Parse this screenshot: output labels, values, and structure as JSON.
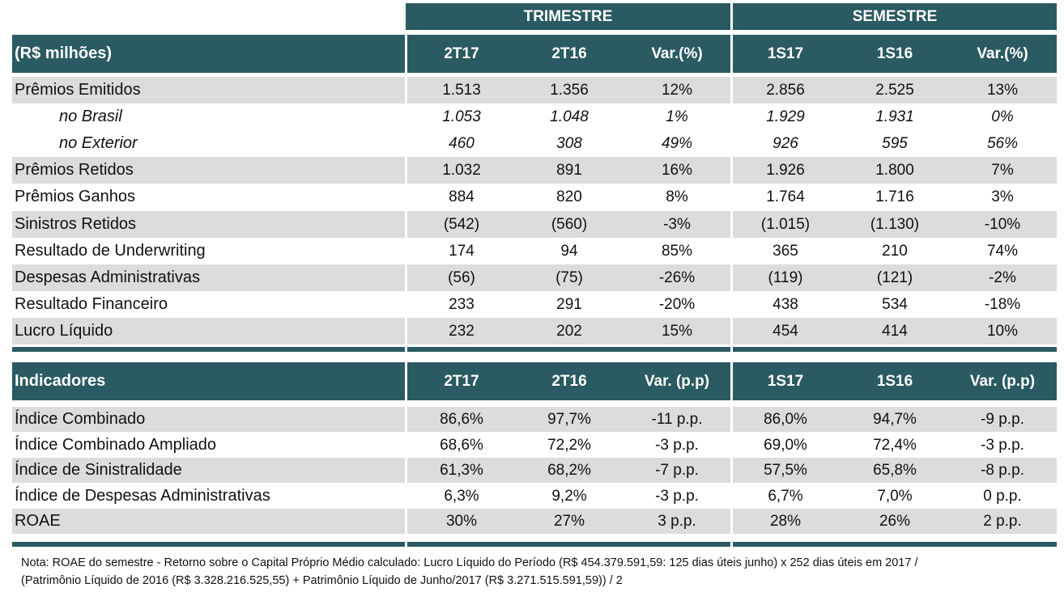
{
  "groups": {
    "trimestre": "TRIMESTRE",
    "semestre": "SEMESTRE"
  },
  "table1": {
    "header": [
      "(R$ milhões)",
      "2T17",
      "2T16",
      "Var.(%)",
      "1S17",
      "1S16",
      "Var.(%)"
    ],
    "rows": [
      {
        "label": "Prêmios Emitidos",
        "values": [
          "1.513",
          "1.356",
          "12%",
          "2.856",
          "2.525",
          "13%"
        ],
        "shade": true,
        "italic": false
      },
      {
        "label": "no Brasil",
        "values": [
          "1.053",
          "1.048",
          "1%",
          "1.929",
          "1.931",
          "0%"
        ],
        "shade": false,
        "italic": true
      },
      {
        "label": "no Exterior",
        "values": [
          "460",
          "308",
          "49%",
          "926",
          "595",
          "56%"
        ],
        "shade": false,
        "italic": true
      },
      {
        "label": "Prêmios Retidos",
        "values": [
          "1.032",
          "891",
          "16%",
          "1.926",
          "1.800",
          "7%"
        ],
        "shade": true,
        "italic": false
      },
      {
        "label": "Prêmios Ganhos",
        "values": [
          "884",
          "820",
          "8%",
          "1.764",
          "1.716",
          "3%"
        ],
        "shade": false,
        "italic": false
      },
      {
        "label": "Sinistros Retidos",
        "values": [
          "(542)",
          "(560)",
          "-3%",
          "(1.015)",
          "(1.130)",
          "-10%"
        ],
        "shade": true,
        "italic": false
      },
      {
        "label": "Resultado de Underwriting",
        "values": [
          "174",
          "94",
          "85%",
          "365",
          "210",
          "74%"
        ],
        "shade": false,
        "italic": false
      },
      {
        "label": "Despesas Administrativas",
        "values": [
          "(56)",
          "(75)",
          "-26%",
          "(119)",
          "(121)",
          "-2%"
        ],
        "shade": true,
        "italic": false
      },
      {
        "label": "Resultado Financeiro",
        "values": [
          "233",
          "291",
          "-20%",
          "438",
          "534",
          "-18%"
        ],
        "shade": false,
        "italic": false
      },
      {
        "label": "Lucro Líquido",
        "values": [
          "232",
          "202",
          "15%",
          "454",
          "414",
          "10%"
        ],
        "shade": true,
        "italic": false
      }
    ]
  },
  "table2": {
    "header": [
      "Indicadores",
      "2T17",
      "2T16",
      "Var. (p.p)",
      "1S17",
      "1S16",
      "Var. (p.p)"
    ],
    "rows": [
      {
        "label": "Índice Combinado",
        "values": [
          "86,6%",
          "97,7%",
          "-11 p.p.",
          "86,0%",
          "94,7%",
          "-9 p.p."
        ],
        "shade": true
      },
      {
        "label": "Índice Combinado Ampliado",
        "values": [
          "68,6%",
          "72,2%",
          "-3 p.p.",
          "69,0%",
          "72,4%",
          "-3 p.p."
        ],
        "shade": false
      },
      {
        "label": "Índice de Sinistralidade",
        "values": [
          "61,3%",
          "68,2%",
          "-7 p.p.",
          "57,5%",
          "65,8%",
          "-8 p.p."
        ],
        "shade": true
      },
      {
        "label": "Índice de Despesas Administrativas",
        "values": [
          "6,3%",
          "9,2%",
          "-3 p.p.",
          "6,7%",
          "7,0%",
          "0 p.p."
        ],
        "shade": false
      },
      {
        "label": "ROAE",
        "values": [
          "30%",
          "27%",
          "3 p.p.",
          "28%",
          "26%",
          "2 p.p."
        ],
        "shade": true
      }
    ]
  },
  "note": {
    "line1": "Nota: ROAE do semestre -  Retorno sobre o Capital Próprio Médio calculado: Lucro Líquido do Período (R$ 454.379.591,59: 125 dias úteis junho) x 252 dias úteis em 2017 /",
    "line2": "(Patrimônio Líquido de 2016 (R$ 3.328.216.525,55) + Patrimônio Líquido de Junho/2017 (R$ 3.271.515.591,59)) / 2"
  },
  "colors": {
    "header_bg": "#2a5a62",
    "shade": "#dcdcdc"
  }
}
